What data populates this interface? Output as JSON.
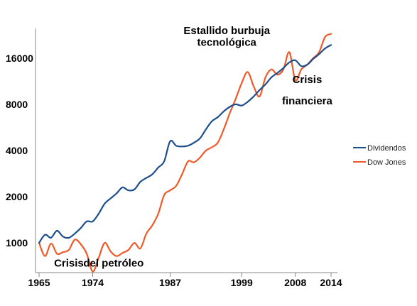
{
  "chart_data": {
    "type": "line",
    "title": "",
    "xlabel": "",
    "ylabel": "",
    "y_scale": "log",
    "xlim": [
      1965,
      2014
    ],
    "ylim": [
      640,
      25000
    ],
    "grid": false,
    "legend_position": "right",
    "x_ticks": [
      1965,
      1974,
      1987,
      1999,
      2008,
      2014
    ],
    "x_tick_labels": [
      "1965",
      "1974",
      "1987",
      "1999",
      "2008",
      "2014"
    ],
    "y_ticks": [
      1000,
      2000,
      4000,
      8000,
      16000
    ],
    "y_tick_labels": [
      "1000",
      "2000",
      "4000",
      "8000",
      "16000"
    ],
    "colors": {
      "Dividendos": "#1f4e8c",
      "Dow Jones": "#f05a28"
    },
    "series": [
      {
        "name": "Dividendos",
        "color": "#1f4e8c",
        "x": [
          1965,
          1966,
          1967,
          1968,
          1969,
          1970,
          1971,
          1972,
          1973,
          1974,
          1975,
          1976,
          1977,
          1978,
          1979,
          1980,
          1981,
          1982,
          1983,
          1984,
          1985,
          1986,
          1987,
          1988,
          1989,
          1990,
          1991,
          1992,
          1993,
          1994,
          1995,
          1996,
          1997,
          1998,
          1999,
          2000,
          2001,
          2002,
          2003,
          2004,
          2005,
          2006,
          2007,
          2008,
          2009,
          2010,
          2011,
          2012,
          2013,
          2014
        ],
        "values": [
          1000,
          1130,
          1080,
          1200,
          1100,
          1080,
          1150,
          1250,
          1380,
          1380,
          1550,
          1800,
          1950,
          2100,
          2300,
          2200,
          2230,
          2500,
          2650,
          2800,
          3100,
          3400,
          4600,
          4300,
          4250,
          4300,
          4500,
          4800,
          5500,
          6200,
          6600,
          7200,
          7700,
          8000,
          7850,
          8300,
          9000,
          9900,
          10800,
          12000,
          12800,
          13800,
          15000,
          15500,
          14200,
          14500,
          15800,
          17000,
          18500,
          19500
        ]
      },
      {
        "name": "Dow Jones",
        "color": "#f05a28",
        "x": [
          1965,
          1966,
          1967,
          1968,
          1969,
          1970,
          1971,
          1972,
          1973,
          1974,
          1975,
          1976,
          1977,
          1978,
          1979,
          1980,
          1981,
          1982,
          1983,
          1984,
          1985,
          1986,
          1987,
          1988,
          1989,
          1990,
          1991,
          1992,
          1993,
          1994,
          1995,
          1996,
          1997,
          1998,
          1999,
          2000,
          2001,
          2002,
          2003,
          2004,
          2005,
          2006,
          2007,
          2008,
          2009,
          2010,
          2011,
          2012,
          2013,
          2014
        ],
        "values": [
          1000,
          820,
          990,
          850,
          870,
          900,
          1050,
          980,
          850,
          650,
          800,
          1000,
          880,
          820,
          860,
          900,
          1000,
          920,
          1150,
          1300,
          1550,
          2050,
          2200,
          2350,
          2800,
          3400,
          3350,
          3600,
          4000,
          4200,
          4500,
          5500,
          7000,
          8700,
          11000,
          13000,
          10500,
          9000,
          12000,
          13500,
          12500,
          13500,
          17500,
          11500,
          13500,
          14500,
          16000,
          17500,
          22000,
          23000
        ]
      }
    ],
    "annotations": [
      {
        "text": "Estallido burbuja",
        "x": 1996.5,
        "y": 23000
      },
      {
        "text": "tecnológica",
        "x": 1996.5,
        "y": 19300
      },
      {
        "text": "Crisis",
        "x": 2010,
        "y": 11000
      },
      {
        "text": "financiera",
        "x": 2010,
        "y": 8000
      },
      {
        "text": "Crisis",
        "x": 1970,
        "y": 700
      },
      {
        "text": "del petróleo",
        "x": 1977.5,
        "y": 700
      }
    ]
  }
}
